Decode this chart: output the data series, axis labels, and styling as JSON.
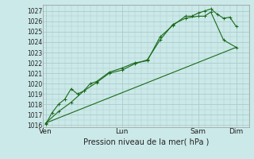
{
  "xlabel": "Pression niveau de la mer( hPa )",
  "bg_color": "#cce9e9",
  "grid_color": "#aacccc",
  "line_color": "#1a6b1a",
  "ylim": [
    1015.8,
    1027.6
  ],
  "yticks": [
    1016,
    1017,
    1018,
    1019,
    1020,
    1021,
    1022,
    1023,
    1024,
    1025,
    1026,
    1027
  ],
  "xtick_labels": [
    "Ven",
    "Lun",
    "Sam",
    "Dim"
  ],
  "xtick_positions": [
    0,
    3.0,
    6.0,
    7.5
  ],
  "xlim": [
    -0.1,
    8.0
  ],
  "line1_x": [
    0.0,
    0.25,
    0.5,
    0.75,
    1.0,
    1.25,
    1.5,
    1.75,
    2.0,
    2.5,
    3.0,
    3.5,
    4.0,
    4.5,
    5.0,
    5.5,
    5.75,
    6.0,
    6.25,
    6.5,
    6.75,
    7.0,
    7.25,
    7.5
  ],
  "line1_y": [
    1016.1,
    1017.2,
    1018.0,
    1018.5,
    1019.5,
    1019.0,
    1019.3,
    1020.0,
    1020.2,
    1021.1,
    1021.5,
    1022.0,
    1022.2,
    1024.5,
    1025.6,
    1026.5,
    1026.5,
    1026.8,
    1027.0,
    1027.2,
    1026.7,
    1026.3,
    1026.4,
    1025.5
  ],
  "line2_x": [
    0.0,
    0.5,
    1.0,
    1.5,
    2.0,
    2.5,
    3.0,
    3.5,
    4.0,
    4.5,
    5.0,
    5.5,
    6.0,
    6.25,
    6.5,
    7.0,
    7.5
  ],
  "line2_y": [
    1016.2,
    1017.3,
    1018.2,
    1019.3,
    1020.1,
    1021.0,
    1021.3,
    1021.9,
    1022.3,
    1024.2,
    1025.7,
    1026.3,
    1026.5,
    1026.5,
    1026.9,
    1024.2,
    1023.5
  ],
  "line3_x": [
    0.0,
    7.5
  ],
  "line3_y": [
    1016.2,
    1023.5
  ]
}
